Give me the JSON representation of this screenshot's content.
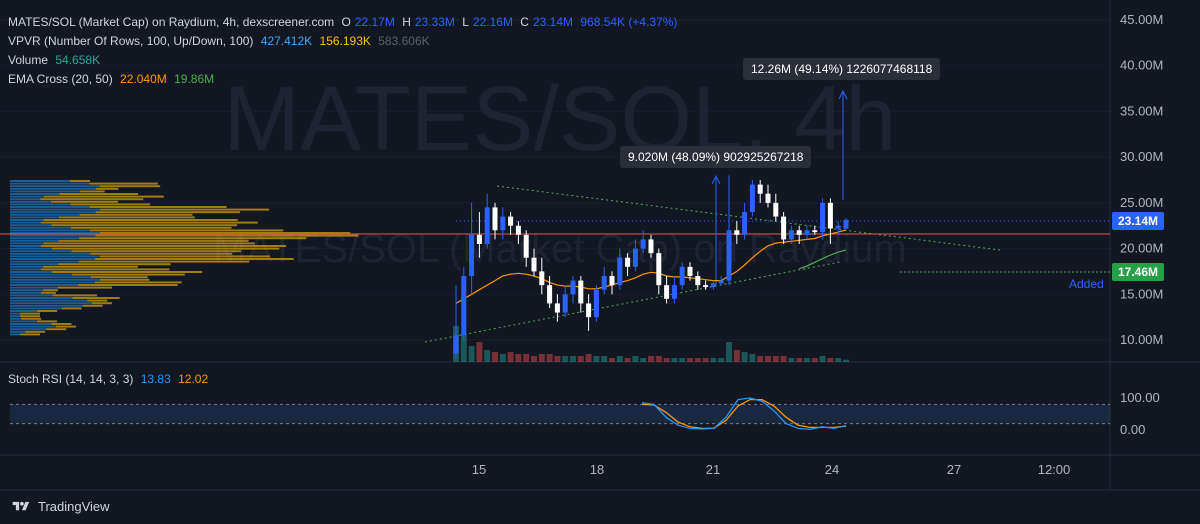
{
  "legend": {
    "main": {
      "title": "MATES/SOL (Market Cap) on Raydium, 4h, dexscreener.com",
      "o_label": "O",
      "o": "22.17M",
      "h_label": "H",
      "h": "23.33M",
      "l_label": "L",
      "l": "22.16M",
      "c_label": "C",
      "c": "23.14M",
      "change": "968.54K (+4.37%)"
    },
    "vpvr": {
      "label": "VPVR (Number Of Rows, 100, Up/Down, 100)",
      "v1": "427.412K",
      "v2": "156.193K",
      "v3": "583.606K"
    },
    "volume": {
      "label": "Volume",
      "value": "54.658K"
    },
    "ema": {
      "label": "EMA Cross (20, 50)",
      "v1": "22.040M",
      "v2": "19.86M"
    },
    "stoch": {
      "label": "Stoch RSI (14, 14, 3, 3)",
      "k": "13.83",
      "d": "12.02"
    }
  },
  "watermark": {
    "big": "MATES/SOL, 4h",
    "small": "MATES/SOL (Market Cap) on Raydium"
  },
  "price_tags": {
    "current": "23.14M",
    "alert": "17.46M",
    "added": "Added"
  },
  "tooltips": {
    "first": "9.020M (48.09%) 902925267218",
    "second": "12.26M (49.14%) 1226077468118"
  },
  "branding": {
    "name": "TradingView"
  },
  "colors": {
    "up": "#26a69a",
    "down": "#ffffff",
    "blue_candle": "#2962ff",
    "ema20": "#ff9800",
    "ema50": "#4caf50",
    "stoch_k": "#2196f3",
    "stoch_d": "#ff9800"
  },
  "chart_data": {
    "type": "candlestick",
    "title": "MATES/SOL (Market Cap) on Raydium, 4h, dexscreener.com",
    "y_axis": {
      "ticks": [
        "45.00M",
        "40.00M",
        "35.00M",
        "30.00M",
        "25.00M",
        "20.00M",
        "15.00M",
        "10.00M"
      ],
      "tick_values": [
        45,
        40,
        35,
        30,
        25,
        20,
        15,
        10
      ],
      "unit": "M"
    },
    "x_axis": {
      "ticks": [
        "15",
        "18",
        "21",
        "24",
        "27",
        "12:00"
      ]
    },
    "stoch_axis": {
      "ticks": [
        "100.00",
        "0.00"
      ],
      "tick_values": [
        100,
        0
      ],
      "bands": [
        80,
        20
      ]
    },
    "candles": [
      {
        "o": 8.5,
        "c": 10.5,
        "h": 16,
        "l": 8
      },
      {
        "o": 10.5,
        "c": 17,
        "h": 18,
        "l": 10
      },
      {
        "o": 17,
        "c": 21.5,
        "h": 25,
        "l": 15
      },
      {
        "o": 21.5,
        "c": 20.5,
        "h": 24,
        "l": 19
      },
      {
        "o": 20.5,
        "c": 24.5,
        "h": 26,
        "l": 20
      },
      {
        "o": 24.5,
        "c": 22,
        "h": 25,
        "l": 21
      },
      {
        "o": 22,
        "c": 23.5,
        "h": 24.5,
        "l": 21
      },
      {
        "o": 23.5,
        "c": 22.5,
        "h": 24,
        "l": 21.5
      },
      {
        "o": 22.5,
        "c": 21.5,
        "h": 23,
        "l": 20.5
      },
      {
        "o": 21.5,
        "c": 19,
        "h": 22,
        "l": 18
      },
      {
        "o": 19,
        "c": 17.5,
        "h": 20,
        "l": 17
      },
      {
        "o": 17.5,
        "c": 16,
        "h": 19,
        "l": 15
      },
      {
        "o": 16,
        "c": 14,
        "h": 17,
        "l": 13.5
      },
      {
        "o": 14,
        "c": 13,
        "h": 15,
        "l": 12
      },
      {
        "o": 13,
        "c": 15,
        "h": 16,
        "l": 12.5
      },
      {
        "o": 15,
        "c": 16.5,
        "h": 17,
        "l": 14
      },
      {
        "o": 16.5,
        "c": 14,
        "h": 17,
        "l": 13
      },
      {
        "o": 14,
        "c": 12.5,
        "h": 15,
        "l": 11
      },
      {
        "o": 12.5,
        "c": 15.5,
        "h": 16,
        "l": 12
      },
      {
        "o": 15.5,
        "c": 17,
        "h": 18,
        "l": 15
      },
      {
        "o": 17,
        "c": 16,
        "h": 17.5,
        "l": 15
      },
      {
        "o": 16,
        "c": 19,
        "h": 20,
        "l": 15.5
      },
      {
        "o": 19,
        "c": 18,
        "h": 19.5,
        "l": 17
      },
      {
        "o": 18,
        "c": 20,
        "h": 21,
        "l": 17.5
      },
      {
        "o": 20,
        "c": 21,
        "h": 22,
        "l": 19.5
      },
      {
        "o": 21,
        "c": 19.5,
        "h": 21.5,
        "l": 19
      },
      {
        "o": 19.5,
        "c": 16,
        "h": 20,
        "l": 15
      },
      {
        "o": 16,
        "c": 14.5,
        "h": 17,
        "l": 14
      },
      {
        "o": 14.5,
        "c": 16,
        "h": 17,
        "l": 14
      },
      {
        "o": 16,
        "c": 18,
        "h": 18.5,
        "l": 15.5
      },
      {
        "o": 18,
        "c": 17,
        "h": 18.5,
        "l": 16.5
      },
      {
        "o": 17,
        "c": 16,
        "h": 17.5,
        "l": 15.5
      },
      {
        "o": 16,
        "c": 15.8,
        "h": 16.5,
        "l": 15.5
      },
      {
        "o": 15.8,
        "c": 16.2,
        "h": 16.5,
        "l": 15.5
      },
      {
        "o": 16.2,
        "c": 16.5,
        "h": 17,
        "l": 16
      },
      {
        "o": 16.5,
        "c": 22,
        "h": 28,
        "l": 16
      },
      {
        "o": 22,
        "c": 21.5,
        "h": 23,
        "l": 20.5
      },
      {
        "o": 21.5,
        "c": 24,
        "h": 25,
        "l": 21
      },
      {
        "o": 24,
        "c": 27,
        "h": 27.5,
        "l": 23.5
      },
      {
        "o": 27,
        "c": 26,
        "h": 27.5,
        "l": 25
      },
      {
        "o": 26,
        "c": 25,
        "h": 27,
        "l": 24.5
      },
      {
        "o": 25,
        "c": 23.5,
        "h": 26,
        "l": 23
      },
      {
        "o": 23.5,
        "c": 21,
        "h": 24,
        "l": 20.5
      },
      {
        "o": 21,
        "c": 22,
        "h": 22.5,
        "l": 20.5
      },
      {
        "o": 22,
        "c": 21.5,
        "h": 22.5,
        "l": 20.5
      },
      {
        "o": 21.5,
        "c": 22,
        "h": 22.5,
        "l": 21
      },
      {
        "o": 22,
        "c": 21.8,
        "h": 22.5,
        "l": 21.5
      },
      {
        "o": 21.8,
        "c": 25,
        "h": 25.5,
        "l": 21
      },
      {
        "o": 25,
        "c": 22.2,
        "h": 25.5,
        "l": 20.5
      },
      {
        "o": 22.2,
        "c": 22.5,
        "h": 23,
        "l": 21.5
      },
      {
        "o": 22.17,
        "c": 23.14,
        "h": 23.33,
        "l": 22.16
      }
    ],
    "volume": [
      9,
      7,
      4,
      5,
      3,
      2.5,
      2,
      2.5,
      2,
      2,
      1.5,
      2,
      2,
      1.5,
      1.5,
      1.5,
      1.5,
      2,
      1.5,
      1.5,
      1,
      1.5,
      1,
      1.5,
      1,
      1.5,
      1.5,
      1,
      1,
      1,
      1,
      1,
      1,
      1,
      1,
      5,
      3,
      2.5,
      2,
      1.5,
      1.5,
      1.5,
      1.5,
      1,
      1,
      1,
      1,
      1.5,
      1,
      1,
      0.6
    ],
    "ema20": [
      14,
      14.5,
      15,
      15.5,
      16,
      16.5,
      17,
      17.2,
      17.3,
      17.2,
      17,
      16.7,
      16.3,
      16,
      15.9,
      15.9,
      15.8,
      15.6,
      15.6,
      15.8,
      16,
      16.3,
      16.5,
      16.8,
      17.2,
      17.4,
      17.3,
      17,
      16.9,
      16.9,
      16.8,
      16.7,
      16.6,
      16.5,
      16.5,
      17,
      17.5,
      18.2,
      19,
      19.7,
      20.3,
      20.6,
      20.7,
      20.8,
      20.9,
      21,
      21.1,
      21.4,
      21.6,
      21.8,
      22.04
    ],
    "ema50": [
      null,
      null,
      null,
      null,
      null,
      null,
      null,
      null,
      null,
      null,
      null,
      null,
      null,
      null,
      null,
      null,
      null,
      null,
      null,
      null,
      null,
      null,
      null,
      null,
      null,
      null,
      null,
      null,
      null,
      null,
      null,
      null,
      null,
      null,
      null,
      null,
      null,
      null,
      null,
      null,
      null,
      null,
      null,
      null,
      17.8,
      18.1,
      18.5,
      18.9,
      19.3,
      19.6,
      19.86
    ],
    "stoch_k": [
      null,
      null,
      null,
      null,
      null,
      null,
      null,
      null,
      null,
      null,
      null,
      null,
      null,
      null,
      null,
      null,
      null,
      null,
      null,
      null,
      null,
      null,
      null,
      null,
      null,
      null,
      null,
      null,
      null,
      null,
      null,
      null,
      null,
      null,
      null,
      null,
      null,
      null,
      null,
      null,
      null,
      null,
      null,
      null,
      null,
      null,
      null,
      null,
      null,
      null,
      13.83
    ],
    "stoch_series_k": [
      85,
      80,
      40,
      15,
      5,
      3,
      5,
      40,
      95,
      100,
      90,
      60,
      20,
      5,
      2,
      10,
      5,
      13.83
    ],
    "stoch_series_d": [
      80,
      78,
      55,
      25,
      10,
      5,
      6,
      30,
      75,
      95,
      95,
      75,
      40,
      15,
      8,
      8,
      8,
      12.02
    ]
  }
}
